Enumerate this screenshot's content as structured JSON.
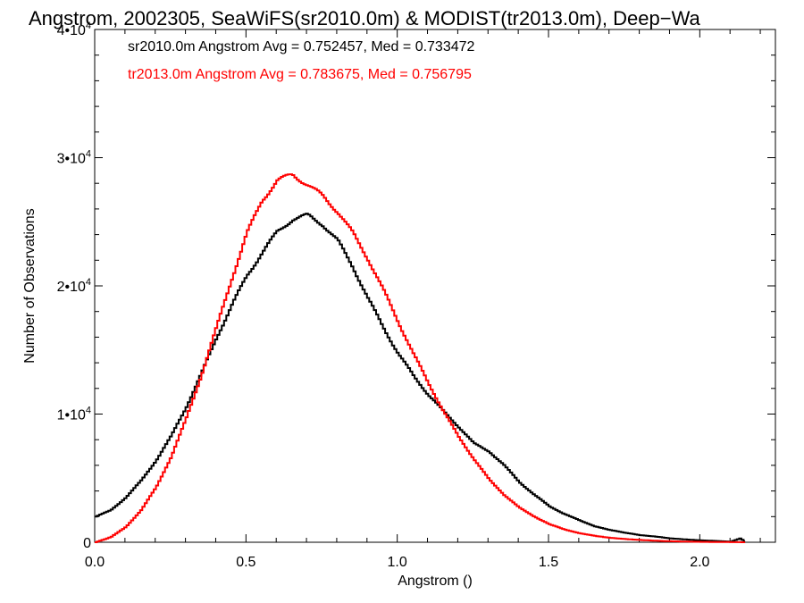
{
  "chart_data": {
    "type": "line",
    "title": "Angstrom, 2002305, SeaWiFS(sr2010.0m) & MODIST(tr2013.0m), Deep−Wa",
    "xlabel": "Angstrom ()",
    "ylabel": "Number of Observations",
    "xlim": [
      0.0,
      2.25
    ],
    "ylim": [
      0,
      40000
    ],
    "x_ticks": [
      {
        "value": 0.0,
        "label": "0.0"
      },
      {
        "value": 0.5,
        "label": "0.5"
      },
      {
        "value": 1.0,
        "label": "1.0"
      },
      {
        "value": 1.5,
        "label": "1.5"
      },
      {
        "value": 2.0,
        "label": "2.0"
      }
    ],
    "y_ticks": [
      {
        "value": 0,
        "base": "0",
        "exp": ""
      },
      {
        "value": 10000,
        "base": "1•10",
        "exp": "4"
      },
      {
        "value": 20000,
        "base": "2•10",
        "exp": "4"
      },
      {
        "value": 30000,
        "base": "3•10",
        "exp": "4"
      },
      {
        "value": 40000,
        "base": "4•10",
        "exp": "4"
      }
    ],
    "grid": false,
    "legend_placement": "top-left",
    "series": [
      {
        "name": "sr2010.0m Angstrom Avg = 0.752457, Med = 0.733472",
        "color": "#000000",
        "x": [
          0.0,
          0.05,
          0.1,
          0.15,
          0.2,
          0.25,
          0.3,
          0.35,
          0.4,
          0.45,
          0.5,
          0.55,
          0.6,
          0.65,
          0.7,
          0.75,
          0.8,
          0.85,
          0.9,
          0.95,
          1.0,
          1.05,
          1.1,
          1.15,
          1.2,
          1.25,
          1.3,
          1.35,
          1.4,
          1.45,
          1.5,
          1.55,
          1.6,
          1.65,
          1.7,
          1.75,
          1.8,
          1.85,
          1.9,
          1.95,
          2.0,
          2.05,
          2.1,
          2.13,
          2.15
        ],
        "y": [
          2000,
          2500,
          3500,
          4800,
          6400,
          8300,
          10600,
          13200,
          16000,
          18500,
          20800,
          22600,
          24200,
          25200,
          25500,
          24800,
          23500,
          21500,
          19000,
          16800,
          14700,
          13000,
          11500,
          10200,
          9000,
          7700,
          7100,
          6000,
          4700,
          3700,
          2800,
          2200,
          1700,
          1250,
          950,
          750,
          550,
          450,
          300,
          220,
          150,
          100,
          50,
          300,
          0
        ]
      },
      {
        "name": "tr2013.0m Angstrom Avg = 0.783675, Med = 0.756795",
        "color": "#ff0000",
        "x": [
          0.0,
          0.05,
          0.1,
          0.15,
          0.2,
          0.25,
          0.3,
          0.35,
          0.4,
          0.45,
          0.5,
          0.55,
          0.6,
          0.65,
          0.7,
          0.75,
          0.8,
          0.85,
          0.9,
          0.95,
          1.0,
          1.05,
          1.1,
          1.15,
          1.2,
          1.25,
          1.3,
          1.35,
          1.4,
          1.45,
          1.5,
          1.55,
          1.6,
          1.65,
          1.7,
          1.75,
          1.8,
          1.85,
          1.9,
          1.95,
          2.0,
          2.05,
          2.1,
          2.15
        ],
        "y": [
          0,
          400,
          1200,
          2500,
          4300,
          6700,
          9700,
          13100,
          16800,
          20600,
          24100,
          26700,
          28200,
          28700,
          27900,
          27000,
          25800,
          24100,
          22100,
          19700,
          17200,
          14700,
          12400,
          10200,
          8200,
          6500,
          4900,
          3700,
          2700,
          2000,
          1400,
          1000,
          700,
          500,
          350,
          250,
          180,
          120,
          80,
          50,
          30,
          20,
          10,
          0
        ]
      }
    ]
  }
}
